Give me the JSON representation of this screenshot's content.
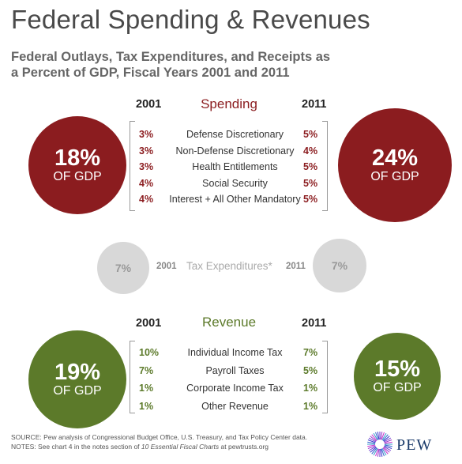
{
  "title": "Federal Spending & Revenues",
  "subtitle_line1": "Federal Outlays, Tax Expenditures, and Receipts as",
  "subtitle_line2": "a Percent of GDP, Fiscal Years 2001 and 2011",
  "colors": {
    "spending": "#8b1c1f",
    "revenue": "#5c7a2a",
    "tax": "#d8d8d8"
  },
  "years": {
    "y1": "2001",
    "y2": "2011"
  },
  "chart_data": {
    "type": "table",
    "spending": {
      "label": "Spending",
      "total_2001": "18%",
      "total_2011": "24%",
      "unit_label": "OF GDP",
      "rows": [
        {
          "category": "Defense Discretionary",
          "y2001": "3%",
          "y2011": "5%"
        },
        {
          "category": "Non-Defense Discretionary",
          "y2001": "3%",
          "y2011": "4%"
        },
        {
          "category": "Health Entitlements",
          "y2001": "3%",
          "y2011": "5%"
        },
        {
          "category": "Social Security",
          "y2001": "4%",
          "y2011": "5%"
        },
        {
          "category": "Interest + All Other Mandatory",
          "y2001": "4%",
          "y2011": "5%"
        }
      ]
    },
    "tax_expenditures": {
      "label": "Tax Expenditures*",
      "y2001": "7%",
      "y2011": "7%"
    },
    "revenue": {
      "label": "Revenue",
      "total_2001": "19%",
      "total_2011": "15%",
      "unit_label": "OF GDP",
      "rows": [
        {
          "category": "Individual Income Tax",
          "y2001": "10%",
          "y2011": "7%"
        },
        {
          "category": "Payroll Taxes",
          "y2001": "7%",
          "y2011": "5%"
        },
        {
          "category": "Corporate Income Tax",
          "y2001": "1%",
          "y2011": "1%"
        },
        {
          "category": "Other Revenue",
          "y2001": "1%",
          "y2011": "1%"
        }
      ]
    }
  },
  "footer": {
    "source": "SOURCE: Pew analysis of Congressional Budget Office, U.S. Treasury, and Tax Policy Center data.",
    "notes_prefix": "NOTES: See chart 4 in the notes section of ",
    "notes_italic": "10 Essential Fiscal Charts",
    "notes_suffix": " at pewtrusts.org"
  },
  "logo": {
    "text": "PEW"
  }
}
